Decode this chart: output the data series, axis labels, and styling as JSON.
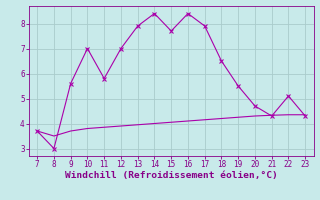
{
  "x": [
    7,
    8,
    9,
    10,
    11,
    12,
    13,
    14,
    15,
    16,
    17,
    18,
    19,
    20,
    21,
    22,
    23
  ],
  "y_line1": [
    3.7,
    3.0,
    5.6,
    7.0,
    5.8,
    7.0,
    7.9,
    8.4,
    7.7,
    8.4,
    7.9,
    6.5,
    5.5,
    4.7,
    4.3,
    5.1,
    4.3
  ],
  "y_line2": [
    3.7,
    3.5,
    3.7,
    3.8,
    3.85,
    3.9,
    3.95,
    4.0,
    4.05,
    4.1,
    4.15,
    4.2,
    4.25,
    4.3,
    4.33,
    4.35,
    4.35
  ],
  "line_color": "#aa00aa",
  "bg_color": "#c8eaea",
  "grid_color": "#aacccc",
  "axis_color": "#880088",
  "xlabel": "Windchill (Refroidissement éolien,°C)",
  "xlim": [
    7,
    23
  ],
  "ylim": [
    2.7,
    8.7
  ],
  "yticks": [
    3,
    4,
    5,
    6,
    7,
    8
  ],
  "xticks": [
    7,
    8,
    9,
    10,
    11,
    12,
    13,
    14,
    15,
    16,
    17,
    18,
    19,
    20,
    21,
    22,
    23
  ],
  "tick_fontsize": 5.5,
  "xlabel_fontsize": 6.8,
  "marker": "x",
  "markersize": 2.5,
  "linewidth": 0.8
}
